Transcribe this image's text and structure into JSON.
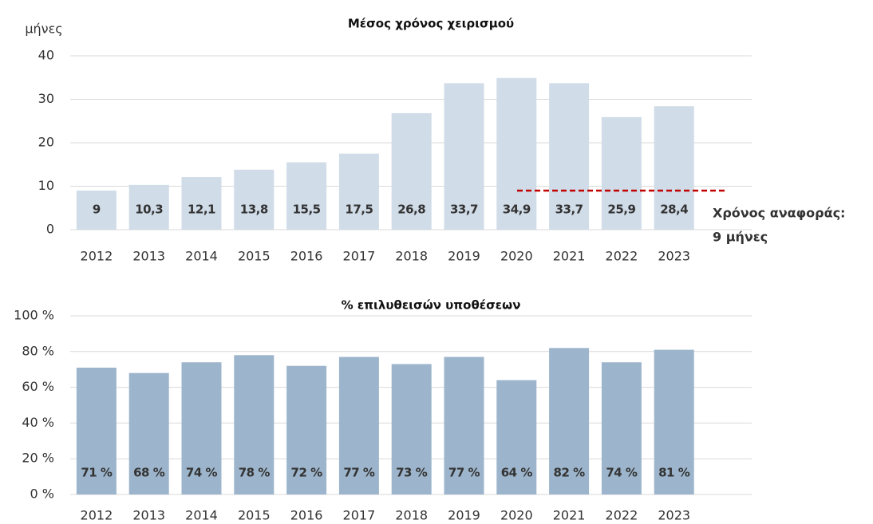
{
  "chart_data": [
    {
      "type": "bar",
      "title": "Μέσος χρόνος χειρισμού",
      "y_label": "μήνες",
      "categories": [
        "2012",
        "2013",
        "2014",
        "2015",
        "2016",
        "2017",
        "2018",
        "2019",
        "2020",
        "2021",
        "2022",
        "2023"
      ],
      "values": [
        9,
        10.3,
        12.1,
        13.8,
        15.5,
        17.5,
        26.8,
        33.7,
        34.9,
        33.7,
        25.9,
        28.4
      ],
      "value_labels": [
        "9",
        "10,3",
        "12,1",
        "13,8",
        "15,5",
        "17,5",
        "26,8",
        "33,7",
        "34,9",
        "33,7",
        "25,9",
        "28,4"
      ],
      "color": "#d0dce8",
      "label_color": "#1f4e79",
      "ylim": [
        0,
        40
      ],
      "yticks": [
        0,
        10,
        20,
        30,
        40
      ],
      "grid": true,
      "reference_line": {
        "value": 9,
        "color": "#c00000",
        "label": [
          "Χρόνος αναφοράς:",
          "9 μήνες"
        ]
      }
    },
    {
      "type": "bar",
      "title": "% επιλυθεισών υποθέσεων",
      "categories": [
        "2012",
        "2013",
        "2014",
        "2015",
        "2016",
        "2017",
        "2018",
        "2019",
        "2020",
        "2021",
        "2022",
        "2023"
      ],
      "values": [
        71,
        68,
        74,
        78,
        72,
        77,
        73,
        77,
        64,
        82,
        74,
        81
      ],
      "value_labels": [
        "71 %",
        "68 %",
        "74 %",
        "78 %",
        "72 %",
        "77 %",
        "73 %",
        "77 %",
        "64 %",
        "82 %",
        "74 %",
        "81 %"
      ],
      "color": "#9db5cc",
      "label_color": "#1f4e79",
      "ylim": [
        0,
        100
      ],
      "yticks": [
        {
          "value": 0,
          "label": "0 %"
        },
        {
          "value": 20,
          "label": "20 %"
        },
        {
          "value": 40,
          "label": "40 %"
        },
        {
          "value": 60,
          "label": "60 %"
        },
        {
          "value": 80,
          "label": "80 %"
        },
        {
          "value": 100,
          "label": "100 %"
        }
      ],
      "grid": true
    }
  ]
}
